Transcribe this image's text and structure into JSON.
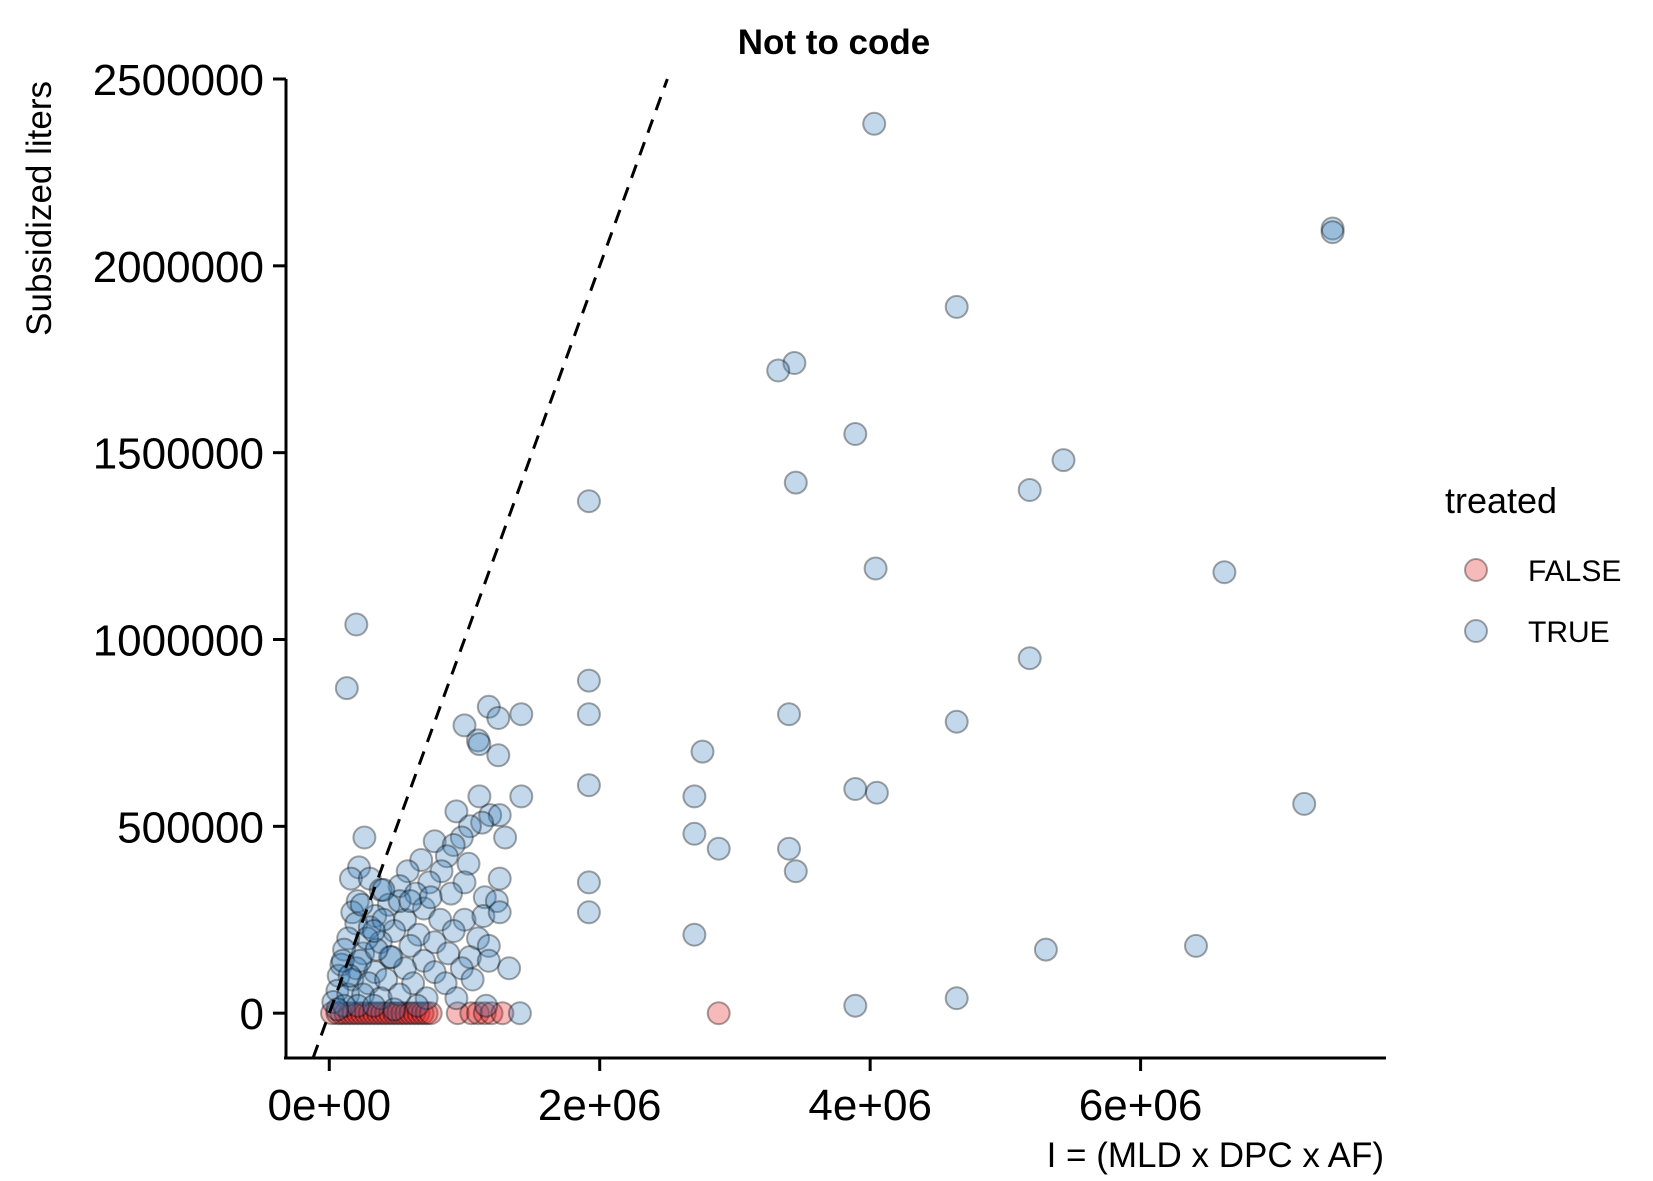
{
  "chart_data": {
    "type": "scatter",
    "title": "Not to code",
    "xlabel": "I = (MLD x DPC x AF)",
    "ylabel": "Subsidized liters",
    "xlim": [
      -320000,
      7800000
    ],
    "ylim": [
      -120000,
      2500000
    ],
    "x_ticks": [
      {
        "value": 0,
        "label": "0e+00"
      },
      {
        "value": 2000000,
        "label": "2e+06"
      },
      {
        "value": 4000000,
        "label": "4e+06"
      },
      {
        "value": 6000000,
        "label": "6e+06"
      }
    ],
    "y_ticks": [
      {
        "value": 0,
        "label": "0"
      },
      {
        "value": 500000,
        "label": "500000"
      },
      {
        "value": 1000000,
        "label": "1000000"
      },
      {
        "value": 1500000,
        "label": "1500000"
      },
      {
        "value": 2000000,
        "label": "2000000"
      },
      {
        "value": 2500000,
        "label": "2500000"
      }
    ],
    "reference_line": {
      "style": "dashed",
      "color": "#000000",
      "from": [
        -120000,
        -120000
      ],
      "to": [
        2500000,
        2500000
      ]
    },
    "legend": {
      "title": "treated",
      "position": "right",
      "entries": [
        {
          "label": "FALSE",
          "color": "#e41a1c"
        },
        {
          "label": "TRUE",
          "color": "#377eb8"
        }
      ]
    },
    "grid": false,
    "series": [
      {
        "name": "FALSE",
        "color": "#e41a1c",
        "points": [
          [
            20000,
            0
          ],
          [
            60000,
            0
          ],
          [
            90000,
            0
          ],
          [
            120000,
            0
          ],
          [
            150000,
            0
          ],
          [
            180000,
            0
          ],
          [
            210000,
            0
          ],
          [
            240000,
            0
          ],
          [
            270000,
            0
          ],
          [
            300000,
            0
          ],
          [
            330000,
            0
          ],
          [
            360000,
            0
          ],
          [
            390000,
            0
          ],
          [
            420000,
            0
          ],
          [
            450000,
            0
          ],
          [
            480000,
            0
          ],
          [
            510000,
            0
          ],
          [
            540000,
            0
          ],
          [
            570000,
            0
          ],
          [
            600000,
            0
          ],
          [
            630000,
            0
          ],
          [
            660000,
            0
          ],
          [
            690000,
            0
          ],
          [
            720000,
            0
          ],
          [
            750000,
            0
          ],
          [
            950000,
            0
          ],
          [
            1050000,
            0
          ],
          [
            1100000,
            0
          ],
          [
            1150000,
            0
          ],
          [
            1200000,
            0
          ],
          [
            1280000,
            0
          ],
          [
            2880000,
            0
          ]
        ]
      },
      {
        "name": "TRUE",
        "color": "#377eb8",
        "points": [
          [
            4030000,
            2380000
          ],
          [
            7420000,
            2100000
          ],
          [
            7420000,
            2090000
          ],
          [
            4640000,
            1890000
          ],
          [
            3440000,
            1740000
          ],
          [
            3320000,
            1720000
          ],
          [
            3890000,
            1550000
          ],
          [
            5430000,
            1480000
          ],
          [
            3450000,
            1420000
          ],
          [
            5180000,
            1400000
          ],
          [
            1920000,
            1370000
          ],
          [
            4040000,
            1190000
          ],
          [
            6620000,
            1180000
          ],
          [
            200000,
            1040000
          ],
          [
            130000,
            870000
          ],
          [
            5180000,
            950000
          ],
          [
            1920000,
            890000
          ],
          [
            1920000,
            800000
          ],
          [
            3400000,
            800000
          ],
          [
            1180000,
            820000
          ],
          [
            1420000,
            800000
          ],
          [
            1250000,
            790000
          ],
          [
            4640000,
            780000
          ],
          [
            1000000,
            770000
          ],
          [
            1100000,
            730000
          ],
          [
            1110000,
            720000
          ],
          [
            2760000,
            700000
          ],
          [
            1250000,
            690000
          ],
          [
            1920000,
            610000
          ],
          [
            3890000,
            600000
          ],
          [
            4050000,
            590000
          ],
          [
            1110000,
            580000
          ],
          [
            1420000,
            580000
          ],
          [
            2700000,
            580000
          ],
          [
            7210000,
            560000
          ],
          [
            940000,
            540000
          ],
          [
            1190000,
            530000
          ],
          [
            1260000,
            530000
          ],
          [
            1130000,
            510000
          ],
          [
            2700000,
            480000
          ],
          [
            260000,
            470000
          ],
          [
            1040000,
            500000
          ],
          [
            1300000,
            470000
          ],
          [
            980000,
            470000
          ],
          [
            780000,
            460000
          ],
          [
            920000,
            450000
          ],
          [
            2880000,
            440000
          ],
          [
            3400000,
            440000
          ],
          [
            870000,
            420000
          ],
          [
            680000,
            410000
          ],
          [
            220000,
            390000
          ],
          [
            1030000,
            400000
          ],
          [
            580000,
            380000
          ],
          [
            3450000,
            380000
          ],
          [
            830000,
            380000
          ],
          [
            160000,
            360000
          ],
          [
            300000,
            360000
          ],
          [
            1260000,
            360000
          ],
          [
            520000,
            340000
          ],
          [
            740000,
            350000
          ],
          [
            1000000,
            350000
          ],
          [
            380000,
            330000
          ],
          [
            640000,
            320000
          ],
          [
            900000,
            320000
          ],
          [
            1150000,
            310000
          ],
          [
            1240000,
            300000
          ],
          [
            210000,
            300000
          ],
          [
            440000,
            290000
          ],
          [
            700000,
            280000
          ],
          [
            1920000,
            350000
          ],
          [
            1920000,
            270000
          ],
          [
            170000,
            270000
          ],
          [
            340000,
            260000
          ],
          [
            560000,
            250000
          ],
          [
            820000,
            250000
          ],
          [
            1000000,
            250000
          ],
          [
            1140000,
            260000
          ],
          [
            1260000,
            270000
          ],
          [
            200000,
            240000
          ],
          [
            300000,
            230000
          ],
          [
            480000,
            220000
          ],
          [
            660000,
            210000
          ],
          [
            920000,
            220000
          ],
          [
            1100000,
            200000
          ],
          [
            2700000,
            210000
          ],
          [
            140000,
            200000
          ],
          [
            380000,
            190000
          ],
          [
            600000,
            180000
          ],
          [
            780000,
            190000
          ],
          [
            1180000,
            180000
          ],
          [
            5300000,
            170000
          ],
          [
            6410000,
            180000
          ],
          [
            110000,
            170000
          ],
          [
            250000,
            160000
          ],
          [
            450000,
            150000
          ],
          [
            700000,
            140000
          ],
          [
            880000,
            160000
          ],
          [
            1040000,
            150000
          ],
          [
            1180000,
            140000
          ],
          [
            90000,
            130000
          ],
          [
            200000,
            120000
          ],
          [
            340000,
            110000
          ],
          [
            560000,
            120000
          ],
          [
            780000,
            110000
          ],
          [
            980000,
            120000
          ],
          [
            1330000,
            120000
          ],
          [
            70000,
            100000
          ],
          [
            170000,
            90000
          ],
          [
            290000,
            80000
          ],
          [
            420000,
            90000
          ],
          [
            620000,
            80000
          ],
          [
            860000,
            80000
          ],
          [
            1060000,
            90000
          ],
          [
            60000,
            60000
          ],
          [
            140000,
            50000
          ],
          [
            250000,
            50000
          ],
          [
            380000,
            40000
          ],
          [
            520000,
            50000
          ],
          [
            720000,
            40000
          ],
          [
            940000,
            40000
          ],
          [
            30000,
            30000
          ],
          [
            110000,
            20000
          ],
          [
            210000,
            20000
          ],
          [
            330000,
            20000
          ],
          [
            480000,
            10000
          ],
          [
            650000,
            20000
          ],
          [
            1160000,
            20000
          ],
          [
            1410000,
            0
          ],
          [
            3890000,
            20000
          ],
          [
            4640000,
            40000
          ],
          [
            100000,
            140000
          ],
          [
            230000,
            140000
          ],
          [
            400000,
            250000
          ],
          [
            520000,
            300000
          ],
          [
            460000,
            150000
          ],
          [
            280000,
            200000
          ],
          [
            350000,
            170000
          ],
          [
            150000,
            100000
          ],
          [
            60000,
            10000
          ],
          [
            400000,
            330000
          ],
          [
            600000,
            300000
          ],
          [
            750000,
            310000
          ],
          [
            330000,
            220000
          ],
          [
            240000,
            290000
          ]
        ]
      }
    ]
  }
}
